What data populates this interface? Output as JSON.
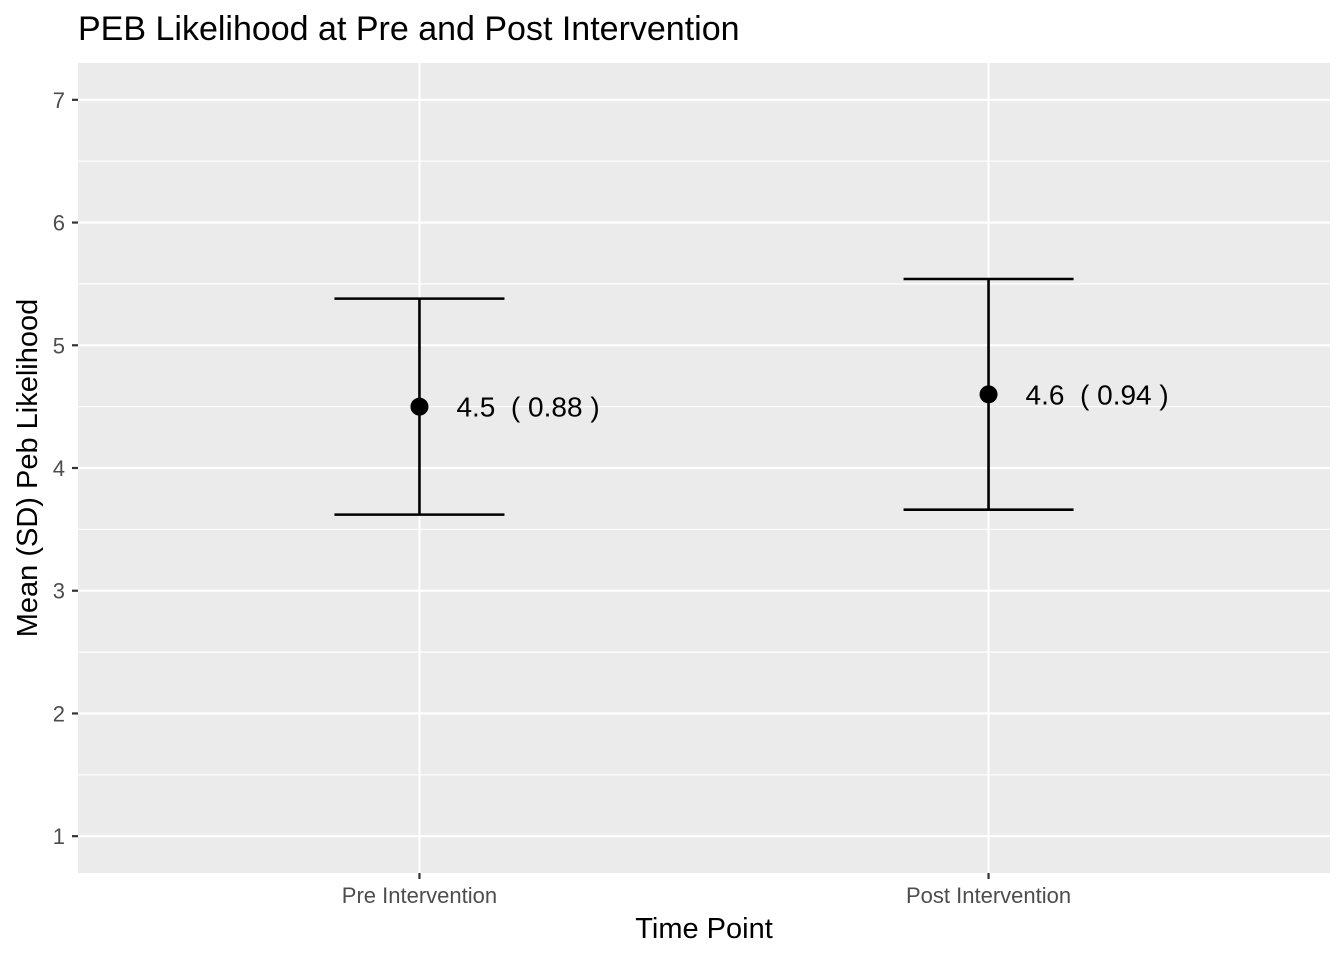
{
  "chart_data": {
    "type": "errorbar",
    "title": "PEB Likelihood at Pre and Post Intervention",
    "xlabel": "Time Point",
    "ylabel": "Mean (SD) Peb Likelihood",
    "categories": [
      "Pre Intervention",
      "Post Intervention"
    ],
    "series": [
      {
        "values": [
          4.5,
          4.6
        ],
        "sd": [
          0.88,
          0.94
        ],
        "labels": [
          "4.5  ( 0.88 )",
          "4.6  ( 0.94 )"
        ]
      }
    ],
    "y_ticks": [
      1,
      2,
      3,
      4,
      5,
      6,
      7
    ],
    "ylim": [
      0.7,
      7.3
    ],
    "grid": true,
    "colors": {
      "panel": "#ebebeb",
      "grid": "#ffffff",
      "mark": "#000000",
      "tick_text": "#4d4d4d"
    }
  }
}
